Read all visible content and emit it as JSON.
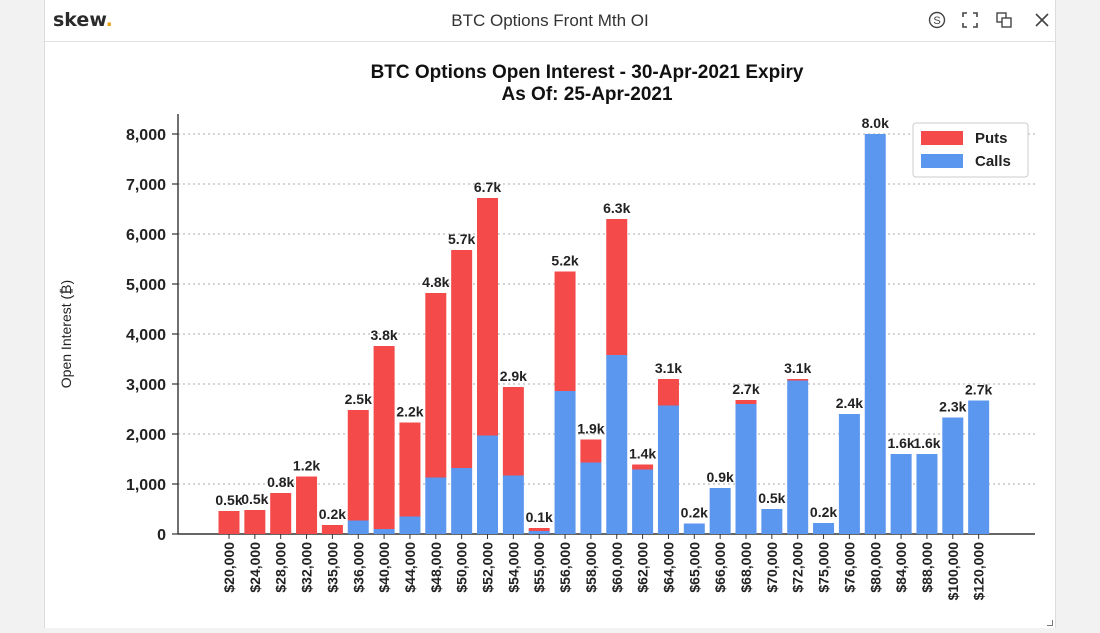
{
  "app": {
    "logo_text": "skew",
    "logo_dot": ".",
    "window_title": "BTC Options Front Mth OI"
  },
  "controls": [
    {
      "name": "currency-icon"
    },
    {
      "name": "fullscreen-icon"
    },
    {
      "name": "duplicate-icon"
    },
    {
      "name": "close-icon"
    }
  ],
  "colors": {
    "puts": "#f44a4a",
    "calls": "#5b97ee",
    "logo_dot": "#e8a317",
    "grid": "#aaaaaa"
  },
  "chart_data": {
    "type": "bar",
    "stacked": true,
    "title": "BTC Options Open Interest - 30-Apr-2021 Expiry",
    "subtitle": "As Of: 25-Apr-2021",
    "xlabel": "",
    "ylabel": "Open Interest (₿)",
    "ylim": [
      0,
      8000
    ],
    "yticks": [
      0,
      1000,
      2000,
      3000,
      4000,
      5000,
      6000,
      7000,
      8000
    ],
    "ytick_labels": [
      "0",
      "1,000",
      "2,000",
      "3,000",
      "4,000",
      "5,000",
      "6,000",
      "7,000",
      "8,000"
    ],
    "grid": "horizontal dotted",
    "legend_position": "top-right",
    "categories": [
      "$20,000",
      "$24,000",
      "$28,000",
      "$32,000",
      "$35,000",
      "$36,000",
      "$40,000",
      "$44,000",
      "$48,000",
      "$50,000",
      "$52,000",
      "$54,000",
      "$55,000",
      "$56,000",
      "$58,000",
      "$60,000",
      "$62,000",
      "$64,000",
      "$65,000",
      "$66,000",
      "$68,000",
      "$70,000",
      "$72,000",
      "$75,000",
      "$76,000",
      "$80,000",
      "$84,000",
      "$88,000",
      "$100,000",
      "$120,000"
    ],
    "series": [
      {
        "name": "Calls",
        "values": [
          0,
          0,
          0,
          0,
          0,
          270,
          100,
          350,
          1130,
          1320,
          1970,
          1170,
          60,
          2860,
          1430,
          3580,
          1290,
          2570,
          210,
          920,
          2600,
          500,
          3070,
          220,
          2400,
          8000,
          1600,
          1600,
          2330,
          2670
        ]
      },
      {
        "name": "Puts",
        "values": [
          460,
          480,
          820,
          1150,
          180,
          2210,
          3660,
          1880,
          3690,
          4360,
          4750,
          1770,
          60,
          2390,
          460,
          2720,
          100,
          530,
          0,
          0,
          80,
          0,
          30,
          0,
          0,
          0,
          0,
          0,
          0,
          0
        ]
      }
    ],
    "total_labels": [
      "0.5k",
      "0.5k",
      "0.8k",
      "1.2k",
      "0.2k",
      "2.5k",
      "3.8k",
      "2.2k",
      "4.8k",
      "5.7k",
      "6.7k",
      "2.9k",
      "0.1k",
      "5.2k",
      "1.9k",
      "6.3k",
      "1.4k",
      "3.1k",
      "0.2k",
      "0.9k",
      "2.7k",
      "0.5k",
      "3.1k",
      "0.2k",
      "2.4k",
      "8.0k",
      "1.6k",
      "1.6k",
      "2.3k",
      "2.7k"
    ]
  }
}
